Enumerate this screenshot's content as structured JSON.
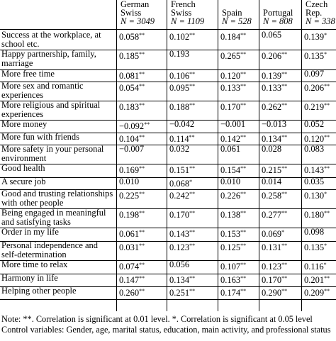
{
  "table": {
    "columns": [
      {
        "name_lines": [
          "German",
          "Swiss"
        ],
        "n_label": "N = 3049"
      },
      {
        "name_lines": [
          "French",
          "Swiss"
        ],
        "n_label": "N = 1109"
      },
      {
        "name_lines": [
          "",
          "Spain"
        ],
        "n_label": "N = 528"
      },
      {
        "name_lines": [
          "",
          "Portugal"
        ],
        "n_label": "N = 808"
      },
      {
        "name_lines": [
          "Czech",
          "Rep."
        ],
        "n_label": "N = 338"
      }
    ],
    "rows": [
      {
        "label": "Success at the workplace, at school etc.",
        "cells": [
          [
            "0.058",
            "**"
          ],
          [
            "0.102",
            "**"
          ],
          [
            "0.184",
            "**"
          ],
          [
            "0.065",
            ""
          ],
          [
            "0.139",
            "*"
          ]
        ]
      },
      {
        "label": "Happy partnership, family, marriage",
        "cells": [
          [
            "0.185",
            "**"
          ],
          [
            "0.193",
            ""
          ],
          [
            "0.265",
            "**"
          ],
          [
            "0.206",
            "**"
          ],
          [
            "0.135",
            "*"
          ]
        ]
      },
      {
        "label": "More free time",
        "cells": [
          [
            "0.081",
            "**"
          ],
          [
            "0.106",
            "**"
          ],
          [
            "0.120",
            "**"
          ],
          [
            "0.139",
            "**"
          ],
          [
            "0.097",
            ""
          ]
        ]
      },
      {
        "label": "More sex and romantic experiences",
        "cells": [
          [
            "0.054",
            "**"
          ],
          [
            "0.095",
            "**"
          ],
          [
            "0.133",
            "**"
          ],
          [
            "0.133",
            "**"
          ],
          [
            "0.206",
            "**"
          ]
        ]
      },
      {
        "label": "More religious and spiritual experiences",
        "cells": [
          [
            "0.183",
            "**"
          ],
          [
            "0.188",
            "**"
          ],
          [
            "0.170",
            "**"
          ],
          [
            "0.262",
            "**"
          ],
          [
            "0.219",
            "**"
          ]
        ]
      },
      {
        "label": "More money",
        "cells": [
          [
            "−0.092",
            "**"
          ],
          [
            "−0.042",
            ""
          ],
          [
            "−0.001",
            ""
          ],
          [
            "−0.013",
            ""
          ],
          [
            "0.052",
            ""
          ]
        ]
      },
      {
        "label": "More fun with friends",
        "cells": [
          [
            "0.104",
            "**"
          ],
          [
            "0.114",
            "**"
          ],
          [
            "0.142",
            "**"
          ],
          [
            "0.134",
            "**"
          ],
          [
            "0.120",
            "**"
          ]
        ]
      },
      {
        "label": "More safety in your personal environment",
        "cells": [
          [
            "−0.007",
            ""
          ],
          [
            "0.032",
            ""
          ],
          [
            "0.061",
            ""
          ],
          [
            "0.028",
            ""
          ],
          [
            "0.083",
            ""
          ]
        ]
      },
      {
        "label": "Good health",
        "cells": [
          [
            "0.169",
            "**"
          ],
          [
            "0.151",
            "**"
          ],
          [
            "0.154",
            "**"
          ],
          [
            "0.215",
            "**"
          ],
          [
            "0.143",
            "**"
          ]
        ]
      },
      {
        "label": "A secure job",
        "cells": [
          [
            "0.010",
            ""
          ],
          [
            "0.068",
            "*"
          ],
          [
            "0.010",
            ""
          ],
          [
            "0.014",
            ""
          ],
          [
            "0.035",
            ""
          ]
        ]
      },
      {
        "label": "Good and trusting relationships with other people",
        "cells": [
          [
            "0.225",
            "**"
          ],
          [
            "0.242",
            "**"
          ],
          [
            "0.226",
            "**"
          ],
          [
            "0.258",
            "**"
          ],
          [
            "0.130",
            "*"
          ]
        ]
      },
      {
        "label": "Being engaged in meaningful and satisfying tasks",
        "cells": [
          [
            "0.198",
            "**"
          ],
          [
            "0.170",
            "**"
          ],
          [
            "0.138",
            "**"
          ],
          [
            "0.277",
            "**"
          ],
          [
            "0.180",
            "**"
          ]
        ]
      },
      {
        "label": "Order in my life",
        "cells": [
          [
            "0.061",
            "**"
          ],
          [
            "0.143",
            "**"
          ],
          [
            "0.153",
            "**"
          ],
          [
            "0.069",
            "*"
          ],
          [
            "0.098",
            ""
          ]
        ]
      },
      {
        "label": "Personal independence and self-determination",
        "cells": [
          [
            "0.031",
            "**"
          ],
          [
            "0.123",
            "**"
          ],
          [
            "0.125",
            "**"
          ],
          [
            "0.131",
            "**"
          ],
          [
            "0.135",
            "*"
          ]
        ]
      },
      {
        "label": "More time to relax",
        "cells": [
          [
            "0.074",
            "**"
          ],
          [
            "0.056",
            ""
          ],
          [
            "0.107",
            "**"
          ],
          [
            "0.123",
            "**"
          ],
          [
            "0.116",
            "*"
          ]
        ]
      },
      {
        "label": "Harmony in life",
        "cells": [
          [
            "0.147",
            "**"
          ],
          [
            "0.134",
            "**"
          ],
          [
            "0.163",
            "**"
          ],
          [
            "0.170",
            "**"
          ],
          [
            "0.201",
            "**"
          ]
        ]
      },
      {
        "label": "Helping other people",
        "cells": [
          [
            "0.260",
            "**"
          ],
          [
            "0.251",
            "**"
          ],
          [
            "0.174",
            "**"
          ],
          [
            "0.290",
            "**"
          ],
          [
            "0.209",
            "**"
          ]
        ]
      }
    ]
  },
  "notes": {
    "line1": "Note: **. Correlation is significant at 0.01 level. *. Correlation is significant at 0.05 level",
    "line2": "Control variables: Gender, age, marital status, education, main activity, and professional status"
  }
}
